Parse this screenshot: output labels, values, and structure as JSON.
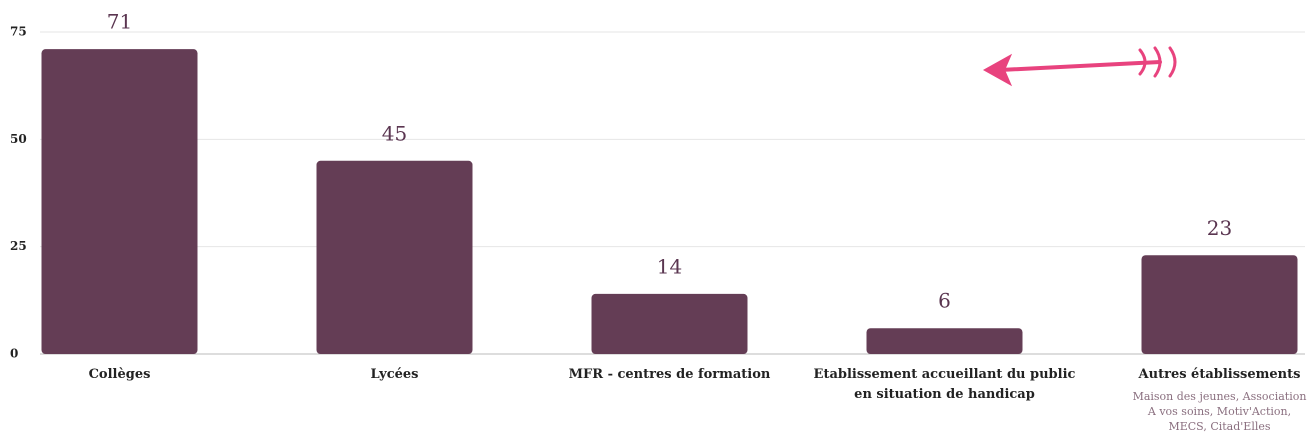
{
  "chart_data": {
    "type": "bar",
    "categories": [
      "Collèges",
      "Lycées",
      "MFR - centres de formation",
      "Etablissement accueillant du public en situation de handicap",
      "Autres établissements"
    ],
    "values": [
      71,
      45,
      14,
      6,
      23
    ],
    "color": "#643d55",
    "annotation": "Maison des  jeunes, Association A vos soins, Motiv'Action, MECS, Citad'Elles",
    "ylim": [
      0,
      75
    ],
    "yticks": [
      0,
      25,
      50,
      75
    ],
    "grid": true
  }
}
